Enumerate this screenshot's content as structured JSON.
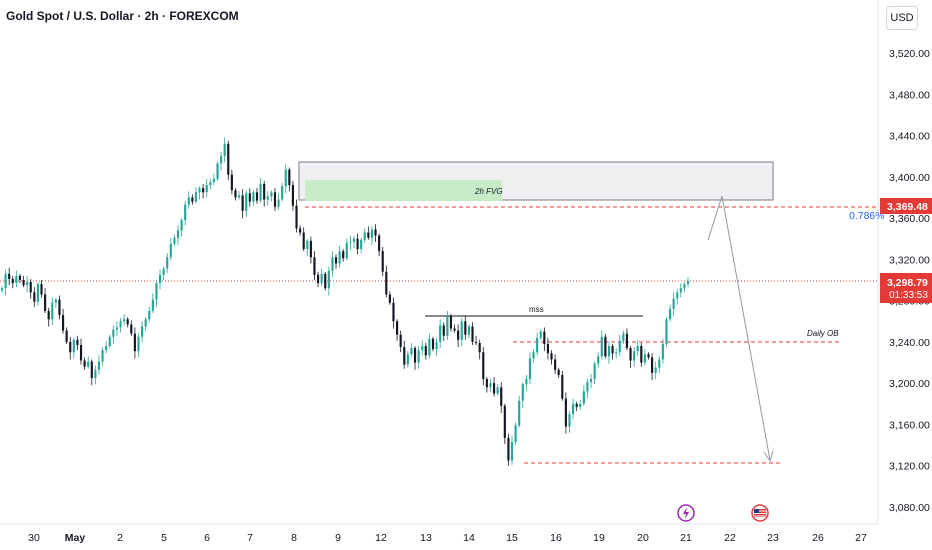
{
  "title": "Gold Spot / U.S. Dollar · 2h · FOREXCOM",
  "currency": "USD",
  "chart_data": {
    "type": "candlestick",
    "y_ticks": [
      "3,520.00",
      "3,480.00",
      "3,440.00",
      "3,400.00",
      "3,360.00",
      "3,320.00",
      "3,280.00",
      "3,240.00",
      "3,200.00",
      "3,160.00",
      "3,120.00",
      "3,080.00"
    ],
    "y_values": [
      3520,
      3480,
      3440,
      3400,
      3360,
      3320,
      3280,
      3240,
      3200,
      3160,
      3120,
      3080
    ],
    "x_ticks": [
      "30",
      "May",
      "2",
      "5",
      "6",
      "7",
      "8",
      "9",
      "12",
      "13",
      "14",
      "15",
      "16",
      "19",
      "20",
      "21",
      "22",
      "23",
      "26",
      "27"
    ],
    "current_price_label": "3,298.79",
    "countdown_label": "01:33:53",
    "level_label": "3,369.48",
    "fib_label": "0.786%",
    "current_price": 3298.79,
    "level_price": 3369.48,
    "colors": {
      "up": "#26a69a",
      "down": "#131722",
      "level": "#e53935",
      "fib": "#2962ff",
      "arrow": "#9598a1"
    },
    "annotations": {
      "fvg_label": "2h FVG",
      "mss_label": "mss",
      "daily_ob_label": "Daily OB"
    },
    "closes": [
      3292,
      3306,
      3301,
      3297,
      3304,
      3300,
      3295,
      3298,
      3288,
      3279,
      3296,
      3286,
      3270,
      3262,
      3278,
      3281,
      3266,
      3251,
      3240,
      3230,
      3242,
      3237,
      3222,
      3216,
      3221,
      3205,
      3213,
      3221,
      3232,
      3236,
      3245,
      3252,
      3254,
      3260,
      3262,
      3257,
      3248,
      3231,
      3245,
      3255,
      3262,
      3270,
      3281,
      3297,
      3305,
      3311,
      3322,
      3335,
      3341,
      3348,
      3358,
      3373,
      3380,
      3376,
      3385,
      3389,
      3385,
      3392,
      3395,
      3398,
      3413,
      3420,
      3432,
      3402,
      3387,
      3380,
      3382,
      3367,
      3384,
      3376,
      3385,
      3377,
      3393,
      3378,
      3381,
      3385,
      3371,
      3378,
      3391,
      3407,
      3392,
      3372,
      3350,
      3346,
      3330,
      3338,
      3322,
      3305,
      3297,
      3306,
      3292,
      3309,
      3322,
      3316,
      3328,
      3321,
      3336,
      3337,
      3340,
      3330,
      3339,
      3346,
      3341,
      3349,
      3343,
      3328,
      3308,
      3286,
      3278,
      3260,
      3247,
      3235,
      3218,
      3228,
      3234,
      3220,
      3232,
      3236,
      3227,
      3243,
      3233,
      3240,
      3256,
      3246,
      3265,
      3253,
      3251,
      3242,
      3260,
      3247,
      3255,
      3240,
      3239,
      3230,
      3204,
      3196,
      3200,
      3190,
      3196,
      3178,
      3147,
      3125,
      3143,
      3159,
      3183,
      3199,
      3204,
      3224,
      3230,
      3244,
      3250,
      3238,
      3229,
      3223,
      3213,
      3208,
      3185,
      3158,
      3170,
      3180,
      3177,
      3180,
      3192,
      3201,
      3204,
      3219,
      3226,
      3245,
      3226,
      3236,
      3229,
      3230,
      3241,
      3248,
      3234,
      3222,
      3231,
      3236,
      3220,
      3228,
      3225,
      3210,
      3215,
      3223,
      3238,
      3262,
      3272,
      3282,
      3288,
      3292,
      3296,
      3299
    ]
  }
}
